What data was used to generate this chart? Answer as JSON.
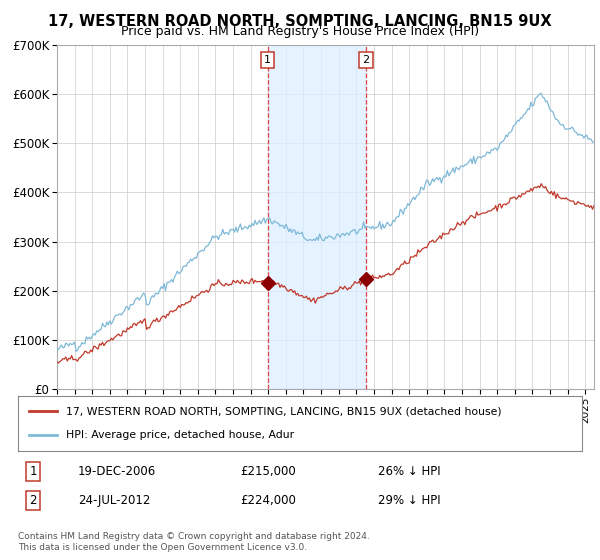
{
  "title": "17, WESTERN ROAD NORTH, SOMPTING, LANCING, BN15 9UX",
  "subtitle": "Price paid vs. HM Land Registry's House Price Index (HPI)",
  "legend_red": "17, WESTERN ROAD NORTH, SOMPTING, LANCING, BN15 9UX (detached house)",
  "legend_blue": "HPI: Average price, detached house, Adur",
  "annotation1_date": "19-DEC-2006",
  "annotation1_price": "£215,000",
  "annotation1_hpi": "26% ↓ HPI",
  "annotation2_date": "24-JUL-2012",
  "annotation2_price": "£224,000",
  "annotation2_hpi": "29% ↓ HPI",
  "footnote1": "Contains HM Land Registry data © Crown copyright and database right 2024.",
  "footnote2": "This data is licensed under the Open Government Licence v3.0.",
  "ylim": [
    0,
    700000
  ],
  "yticks": [
    0,
    100000,
    200000,
    300000,
    400000,
    500000,
    600000,
    700000
  ],
  "ytick_labels": [
    "£0",
    "£100K",
    "£200K",
    "£300K",
    "£400K",
    "£500K",
    "£600K",
    "£700K"
  ],
  "color_red": "#c0392b",
  "color_blue": "#7fb9d8",
  "color_bg": "#ffffff",
  "color_grid": "#cccccc",
  "sale1_year": 2006.97,
  "sale1_value": 215000,
  "sale2_year": 2012.56,
  "sale2_value": 224000,
  "shade_start": 2006.97,
  "shade_end": 2012.56,
  "xmin": 1995.0,
  "xmax": 2025.5
}
